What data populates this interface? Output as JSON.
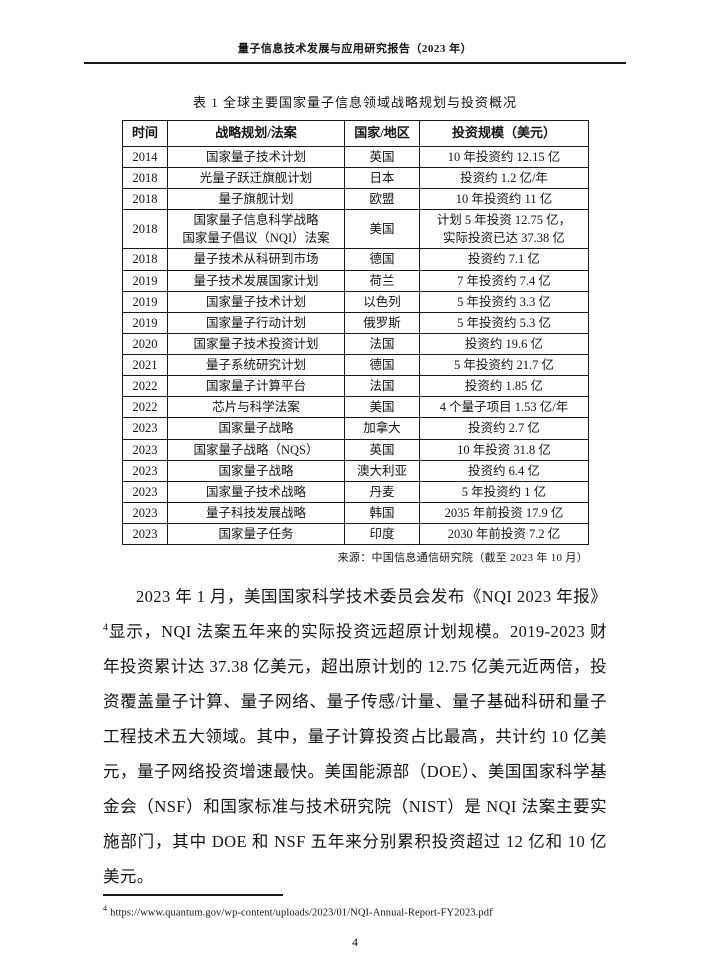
{
  "page": {
    "header_title": "量子信息技术发展与应用研究报告（2023 年）",
    "page_number": "4"
  },
  "table": {
    "caption": "表 1 全球主要国家量子信息领域战略规划与投资概况",
    "headers": [
      "时间",
      "战略规划/法案",
      "国家/地区",
      "投资规模（美元）"
    ],
    "rows": [
      {
        "year": "2014",
        "plan": [
          "国家量子技术计划"
        ],
        "country": "英国",
        "investment": [
          "10 年投资约 12.15 亿"
        ]
      },
      {
        "year": "2018",
        "plan": [
          "光量子跃迁旗舰计划"
        ],
        "country": "日本",
        "investment": [
          "投资约 1.2 亿/年"
        ]
      },
      {
        "year": "2018",
        "plan": [
          "量子旗舰计划"
        ],
        "country": "欧盟",
        "investment": [
          "10 年投资约 11 亿"
        ]
      },
      {
        "year": "2018",
        "plan": [
          "国家量子信息科学战略",
          "国家量子倡议（NQI）法案"
        ],
        "country": "美国",
        "investment": [
          "计划 5 年投资 12.75 亿，",
          "实际投资已达 37.38 亿"
        ]
      },
      {
        "year": "2018",
        "plan": [
          "量子技术从科研到市场"
        ],
        "country": "德国",
        "investment": [
          "投资约 7.1 亿"
        ]
      },
      {
        "year": "2019",
        "plan": [
          "量子技术发展国家计划"
        ],
        "country": "荷兰",
        "investment": [
          "7 年投资约 7.4 亿"
        ]
      },
      {
        "year": "2019",
        "plan": [
          "国家量子技术计划"
        ],
        "country": "以色列",
        "investment": [
          "5 年投资约 3.3 亿"
        ]
      },
      {
        "year": "2019",
        "plan": [
          "国家量子行动计划"
        ],
        "country": "俄罗斯",
        "investment": [
          "5 年投资约 5.3 亿"
        ]
      },
      {
        "year": "2020",
        "plan": [
          "国家量子技术投资计划"
        ],
        "country": "法国",
        "investment": [
          "投资约 19.6 亿"
        ]
      },
      {
        "year": "2021",
        "plan": [
          "量子系统研究计划"
        ],
        "country": "德国",
        "investment": [
          "5 年投资约 21.7 亿"
        ]
      },
      {
        "year": "2022",
        "plan": [
          "国家量子计算平台"
        ],
        "country": "法国",
        "investment": [
          "投资约 1.85 亿"
        ]
      },
      {
        "year": "2022",
        "plan": [
          "芯片与科学法案"
        ],
        "country": "美国",
        "investment": [
          "4 个量子项目 1.53 亿/年"
        ]
      },
      {
        "year": "2023",
        "plan": [
          "国家量子战略"
        ],
        "country": "加拿大",
        "investment": [
          "投资约 2.7 亿"
        ]
      },
      {
        "year": "2023",
        "plan": [
          "国家量子战略（NQS）"
        ],
        "country": "英国",
        "investment": [
          "10 年投资 31.8 亿"
        ]
      },
      {
        "year": "2023",
        "plan": [
          "国家量子战略"
        ],
        "country": "澳大利亚",
        "investment": [
          "投资约 6.4 亿"
        ]
      },
      {
        "year": "2023",
        "plan": [
          "国家量子技术战略"
        ],
        "country": "丹麦",
        "investment": [
          "5 年投资约 1 亿"
        ]
      },
      {
        "year": "2023",
        "plan": [
          "量子科技发展战略"
        ],
        "country": "韩国",
        "investment": [
          "2035 年前投资 17.9 亿"
        ]
      },
      {
        "year": "2023",
        "plan": [
          "国家量子任务"
        ],
        "country": "印度",
        "investment": [
          "2030 年前投资 7.2 亿"
        ]
      }
    ],
    "source": "来源：中国信息通信研究院（截至 2023 年 10 月）"
  },
  "paragraph": {
    "part1": "2023 年 1 月，美国国家科学技术委员会发布《NQI 2023 年报》",
    "sup_marker": "4",
    "part2": "显示，NQI 法案五年来的实际投资远超原计划规模。2019-2023 财年投资累计达 37.38 亿美元，超出原计划的 12.75 亿美元近两倍，投资覆盖量子计算、量子网络、量子传感/计量、量子基础科研和量子工程技术五大领域。其中，量子计算投资占比最高，共计约 10 亿美元，量子网络投资增速最快。美国能源部（DOE）、美国国家科学基金会（NSF）和国家标准与技术研究院（NIST）是 NQI 法案主要实施部门，其中 DOE 和 NSF 五年来分别累积投资超过 12 亿和 10 亿美元。"
  },
  "footnote": {
    "marker": "4",
    "url": "https://www.quantum.gov/wp-content/uploads/2023/01/NQI-Annual-Report-FY2023.pdf"
  }
}
